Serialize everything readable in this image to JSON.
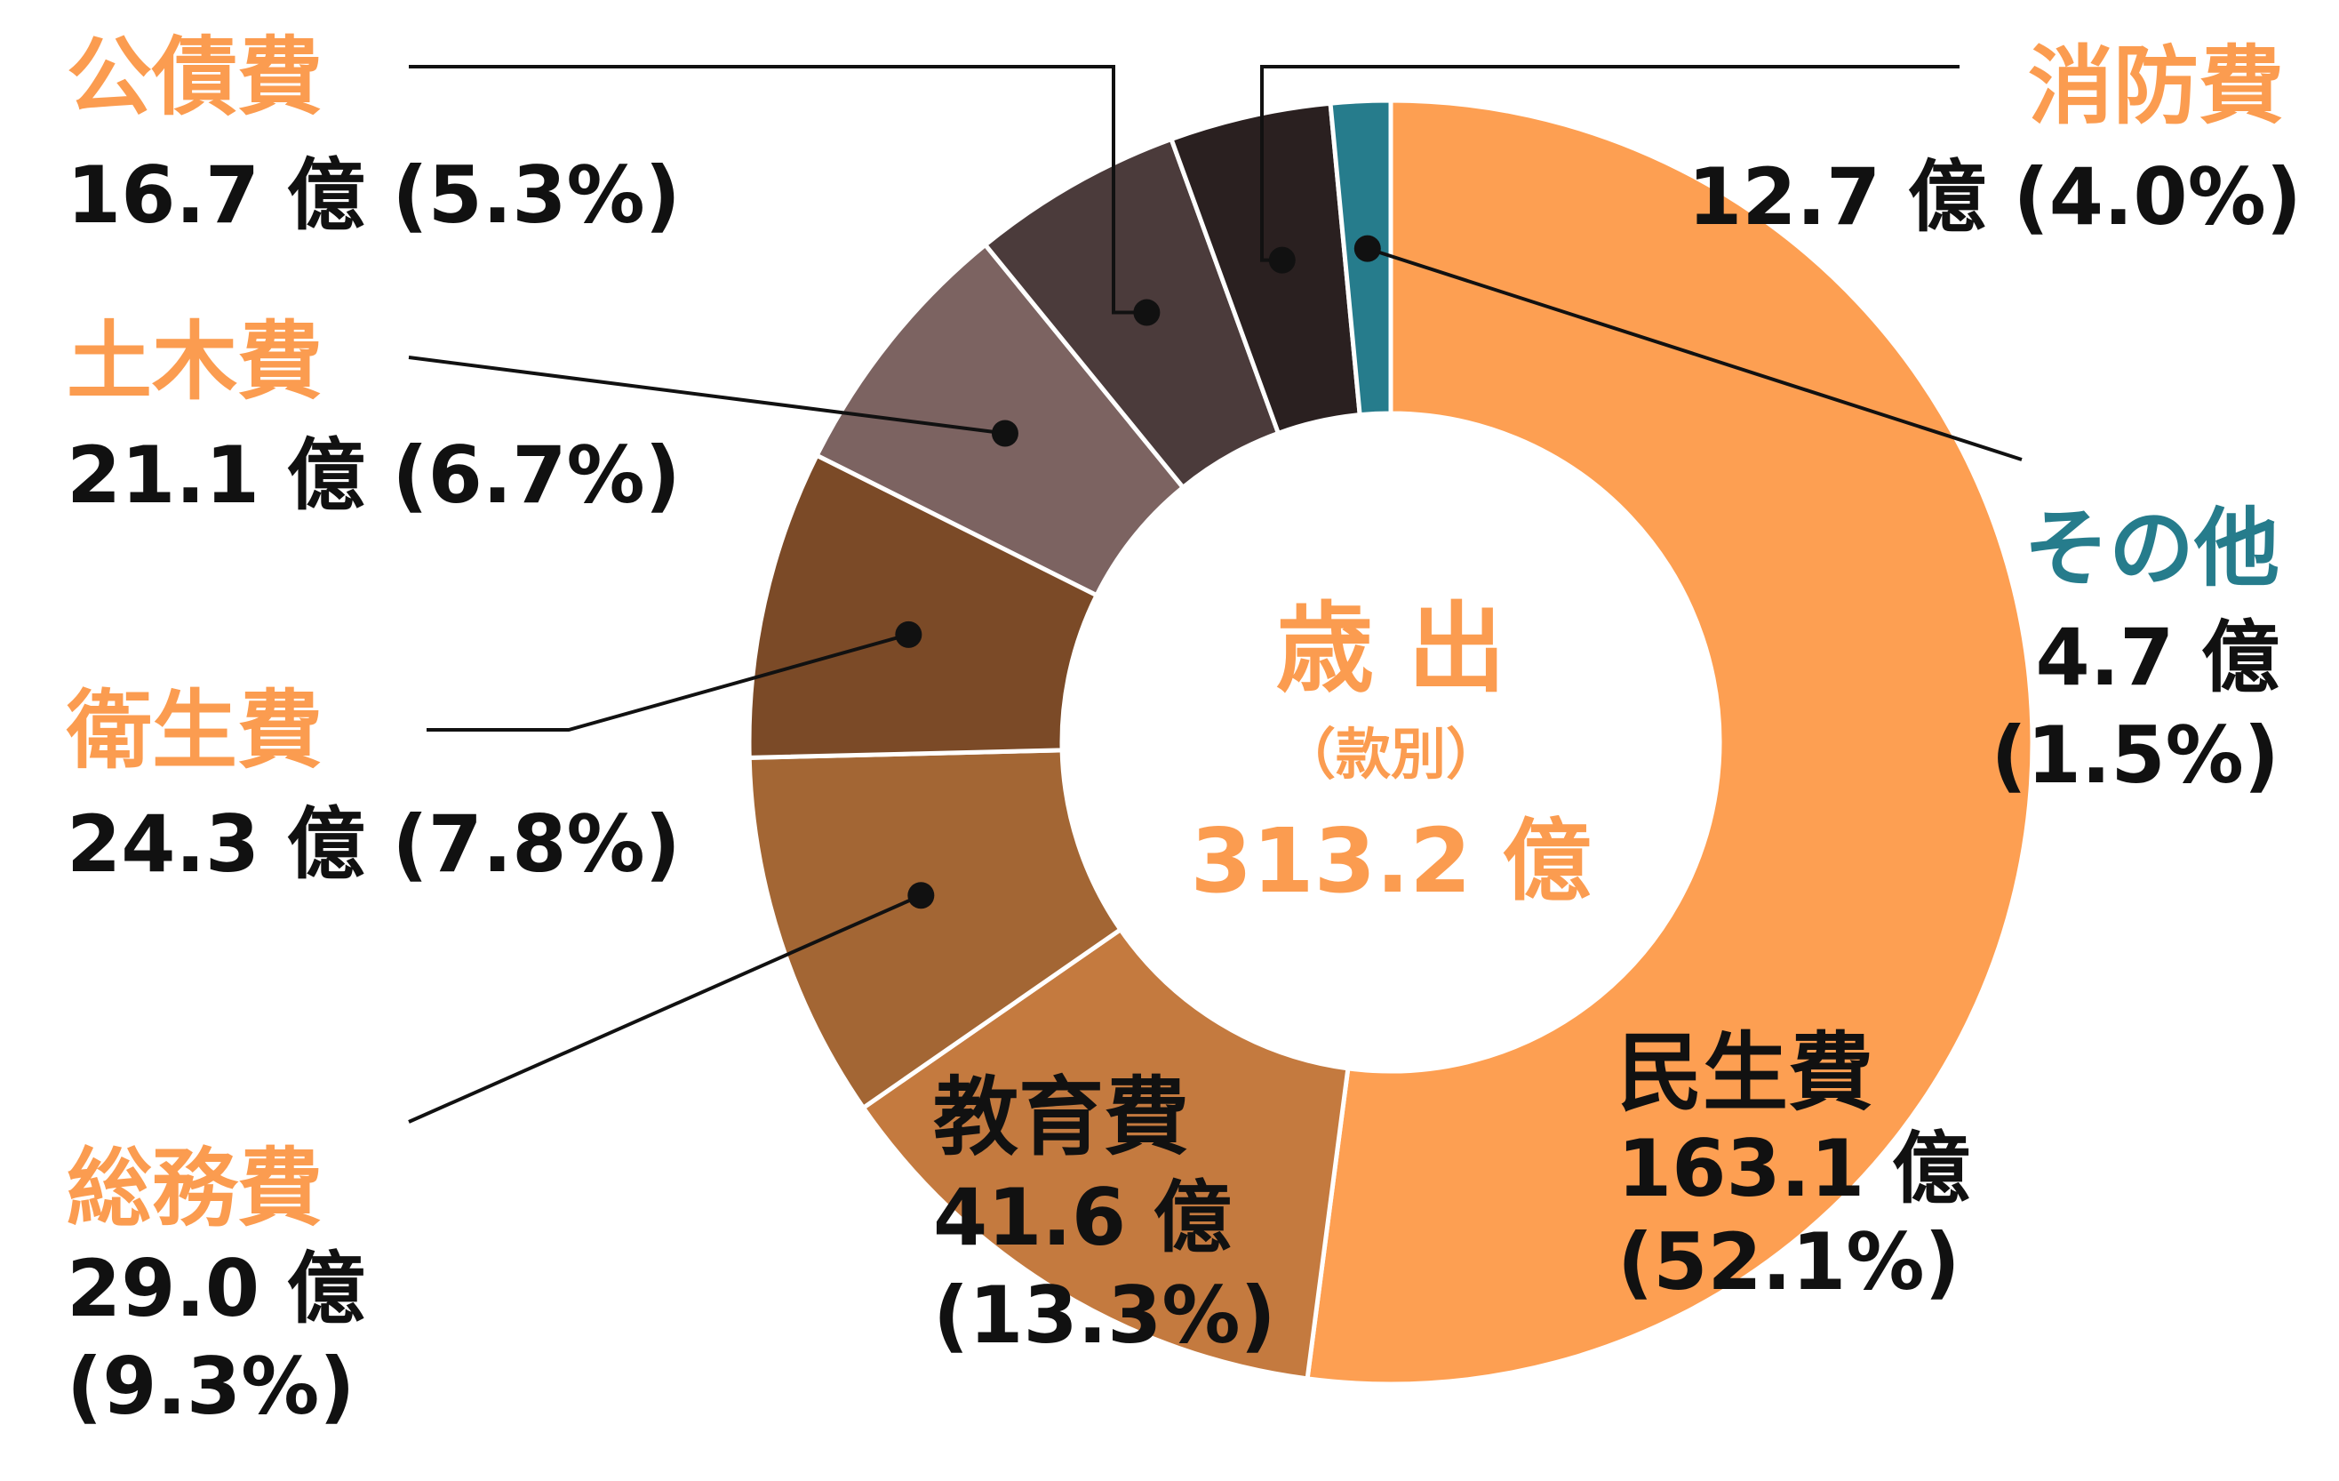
{
  "chart_data": {
    "type": "pie",
    "center": {
      "title": "歳 出",
      "subtitle": "（款別）",
      "total": "313.2 億"
    },
    "unit": "億",
    "slices": [
      {
        "name": "民生費",
        "value": 163.1,
        "value_label": "163.1 億",
        "percent_label": "(52.1%)",
        "color": "#fd9f52",
        "name_color": "#111111"
      },
      {
        "name": "教育費",
        "value": 41.6,
        "value_label": "41.6 億",
        "percent_label": "(13.3%)",
        "color": "#c47a3f",
        "name_color": "#111111"
      },
      {
        "name": "総務費",
        "value": 29.0,
        "value_label": "29.0 億",
        "percent_label": "(9.3%)",
        "color": "#a36634",
        "name_color": "#fb9c50"
      },
      {
        "name": "衛生費",
        "value": 24.3,
        "value_label": "24.3 億 (7.8%)",
        "percent_label": "",
        "color": "#7b4a27",
        "name_color": "#fb9c50"
      },
      {
        "name": "土木費",
        "value": 21.1,
        "value_label": "21.1 億 (6.7%)",
        "percent_label": "",
        "color": "#7c6361",
        "name_color": "#fb9c50"
      },
      {
        "name": "公債費",
        "value": 16.7,
        "value_label": "16.7 億 (5.3%)",
        "percent_label": "",
        "color": "#4b3b3b",
        "name_color": "#fb9c50"
      },
      {
        "name": "消防費",
        "value": 12.7,
        "value_label": "12.7 億 (4.0%)",
        "percent_label": "",
        "color": "#2a2020",
        "name_color": "#fb9c50"
      },
      {
        "name": "その他",
        "value": 4.7,
        "value_label": "4.7 億",
        "percent_label": "(1.5%)",
        "color": "#267c8c",
        "name_color": "#267c8c"
      }
    ],
    "accent_color": "#fb9c50"
  }
}
